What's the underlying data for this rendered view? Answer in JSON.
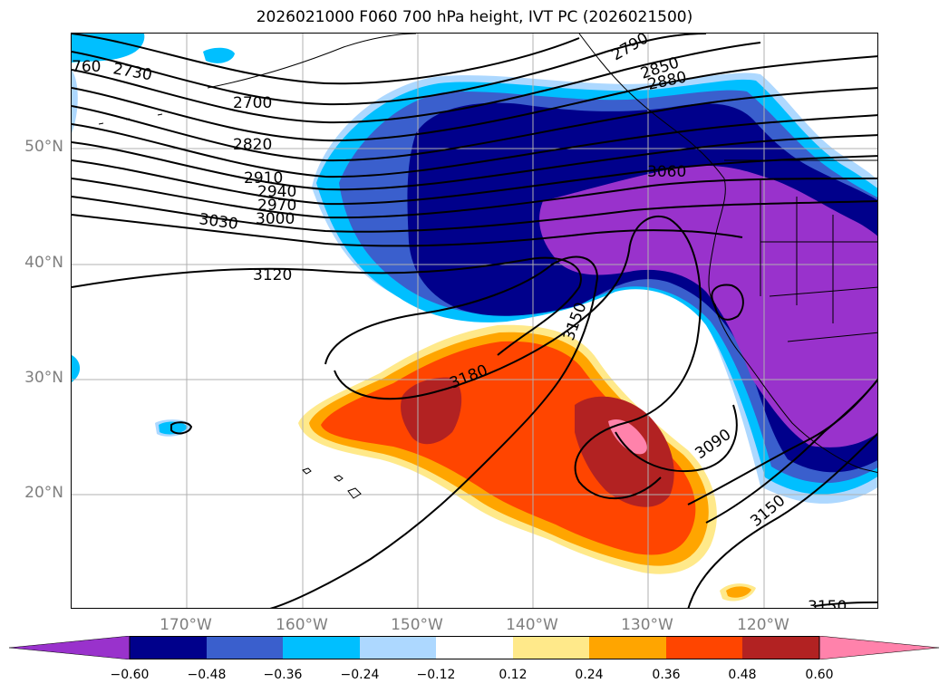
{
  "title": "2026021000 F060 700 hPa height, IVT PC (2026021500)",
  "lat_labels": [
    "50°N",
    "40°N",
    "30°N",
    "20°N"
  ],
  "lon_labels": [
    "170°W",
    "160°W",
    "150°W",
    "140°W",
    "130°W",
    "120°W"
  ],
  "contour_labels": [
    "760",
    "2730",
    "2700",
    "2820",
    "2910",
    "2940",
    "2970",
    "3000",
    "3030",
    "3120",
    "3150",
    "3180",
    "3090",
    "3150",
    "3060",
    "2790",
    "2850",
    "2880",
    "3150"
  ],
  "colorbar": {
    "ticks": [
      "−0.60",
      "−0.48",
      "−0.36",
      "−0.24",
      "−0.12",
      "0.12",
      "0.24",
      "0.36",
      "0.48",
      "0.60"
    ],
    "colors": [
      "#9932cc",
      "#00008b",
      "#3a5fcd",
      "#00bfff",
      "#add8ff",
      "#ffffff",
      "#ffe98a",
      "#ffa500",
      "#ff4500",
      "#b22222",
      "#ff82ab"
    ]
  },
  "colors": {
    "purple": "#9932cc",
    "navy": "#00008b",
    "royal": "#3a5fcd",
    "cyan": "#00bfff",
    "lightblue": "#add8ff",
    "yellow": "#ffe98a",
    "orange": "#ffa500",
    "redorange": "#ff4500",
    "darkred": "#b22222",
    "pink": "#ff82ab",
    "grid": "#b0b0b0"
  }
}
